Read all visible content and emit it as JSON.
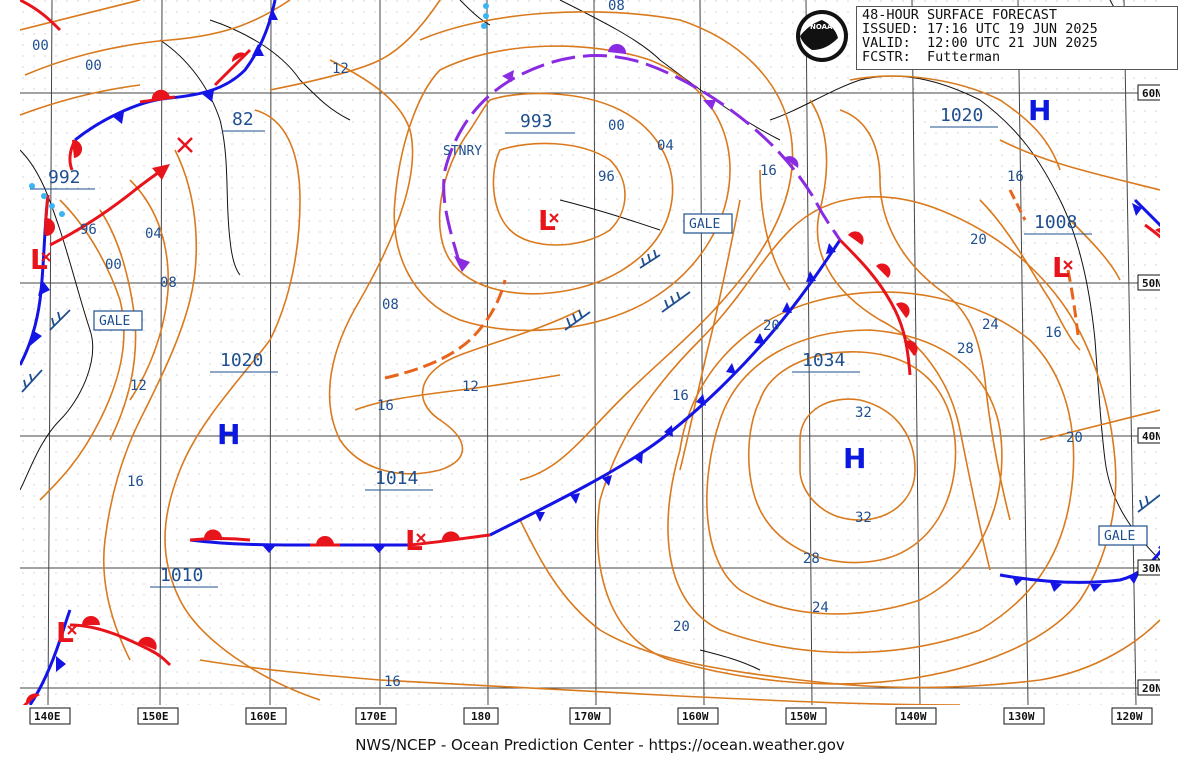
{
  "header": {
    "title": "48-HOUR SURFACE FORECAST",
    "issued": "ISSUED: 17:16 UTC 19 JUN 2025",
    "valid": "VALID:  12:00 UTC 21 JUN 2025",
    "forecaster": "FCSTR:  Futterman",
    "logo_text": "NOAA"
  },
  "footer": {
    "credit": "NWS/NCEP - Ocean Prediction Center - https://ocean.weather.gov"
  },
  "longitude_labels": [
    "140E",
    "150E",
    "160E",
    "170E",
    "180",
    "170W",
    "160W",
    "150W",
    "140W",
    "130W",
    "120W"
  ],
  "latitude_labels": [
    "60N",
    "50N",
    "40N",
    "30N",
    "20N"
  ],
  "pressure_centers": {
    "low_992": "992",
    "low_993": "993",
    "high_1020_w": "1020",
    "high_1020_e": "1020",
    "low_1008": "1008",
    "high_1034": "1034",
    "low_1014": "1014",
    "low_1010": "1010",
    "low_82": "82"
  },
  "symbols": {
    "high": "H",
    "low": "L"
  },
  "stationary_label": "STNRY",
  "gale_label": "GALE",
  "isobar_labels": {
    "a00": "00",
    "b00": "00",
    "c12": "12",
    "d08": "08",
    "e00": "00",
    "f04": "04",
    "g96": "96",
    "h04": "04",
    "i96": "96",
    "j00": "00",
    "k08": "08",
    "l12": "12",
    "m16": "16",
    "n12": "12",
    "o08": "08",
    "p16": "16",
    "q20": "20",
    "r16": "16",
    "s32": "32",
    "t32": "32",
    "u28": "28",
    "v24": "24",
    "w20": "20",
    "x16": "16",
    "y20": "20",
    "z24": "24",
    "aa28": "28",
    "ab16": "16",
    "ac20": "20",
    "ad16": "16",
    "ae16": "16"
  },
  "colors": {
    "isobar": "#d97a1e",
    "label_blue": "#1f4f8f",
    "cold_front": "#1414e6",
    "warm_front": "#e8141c",
    "occluded_front": "#8a2be2",
    "trough": "#e8641c"
  }
}
